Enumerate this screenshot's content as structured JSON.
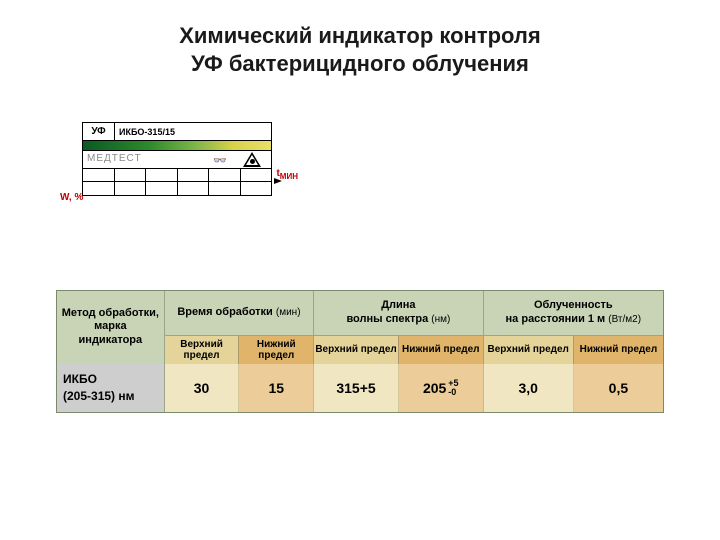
{
  "title_line1": "Химический индикатор контроля",
  "title_line2": "УФ бактерицидного облучения",
  "diagram": {
    "uf": "УФ",
    "code": "ИКБО-315/15",
    "brand": "МЕДТЕСТ",
    "t_label": "t",
    "t_sub": "МИН",
    "w_label": "W, %",
    "band_gradient_colors": [
      "#0b5a23",
      "#2c8a2c",
      "#7fb64a",
      "#d9d14a",
      "#e8e06a"
    ]
  },
  "table": {
    "col0_header": "Метод обработки, марка индикатора",
    "groups": [
      {
        "top": "Время обработки",
        "top_unit": "(мин)",
        "sub_upper": "Верхний предел",
        "sub_lower": "Нижний предел",
        "upper": "30",
        "lower": "15"
      },
      {
        "top": "Длина",
        "top_line2": "волны спектра",
        "top_unit": "(нм)",
        "sub_upper": "Верхний предел",
        "sub_lower": "Нижний предел",
        "upper": "315+5",
        "lower_base": "205",
        "lower_sup": "+5",
        "lower_sub": "-0"
      },
      {
        "top": "Облученность",
        "top_line2": "на расстоянии 1 м",
        "top_unit": "(Вт/м2)",
        "sub_upper": "Верхний предел",
        "sub_lower": "Нижний предел",
        "upper": "3,0",
        "lower": "0,5"
      }
    ],
    "row_label_line1": "ИКБО",
    "row_label_line2": "(205-315) нм",
    "colors": {
      "header_bg": "#c9d3b6",
      "sub_upper_bg": "#e5d49a",
      "sub_lower_bg": "#e0b46a",
      "cell_upper_bg": "#f0e6c2",
      "cell_lower_bg": "#eccd99",
      "row_label_bg": "#cecece"
    }
  }
}
